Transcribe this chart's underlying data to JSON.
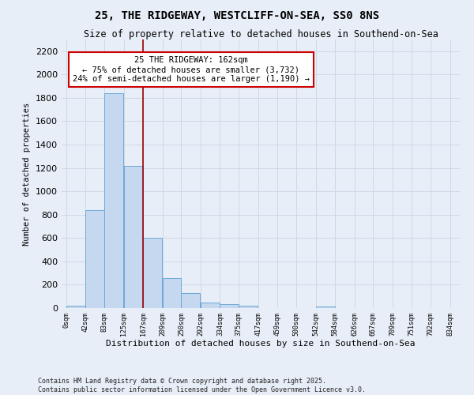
{
  "title": "25, THE RIDGEWAY, WESTCLIFF-ON-SEA, SS0 8NS",
  "subtitle": "Size of property relative to detached houses in Southend-on-Sea",
  "xlabel": "Distribution of detached houses by size in Southend-on-Sea",
  "ylabel": "Number of detached properties",
  "bar_values": [
    20,
    840,
    1840,
    1220,
    600,
    260,
    130,
    50,
    35,
    20,
    0,
    0,
    0,
    15,
    0,
    0,
    0,
    0,
    0,
    0
  ],
  "bin_labels": [
    "0sqm",
    "42sqm",
    "83sqm",
    "125sqm",
    "167sqm",
    "209sqm",
    "250sqm",
    "292sqm",
    "334sqm",
    "375sqm",
    "417sqm",
    "459sqm",
    "500sqm",
    "542sqm",
    "584sqm",
    "626sqm",
    "667sqm",
    "709sqm",
    "751sqm",
    "792sqm",
    "834sqm"
  ],
  "bin_starts": [
    0,
    42,
    83,
    125,
    167,
    209,
    250,
    292,
    334,
    375,
    417,
    459,
    500,
    542,
    584,
    626,
    667,
    709,
    751,
    792
  ],
  "bar_color": "#c5d8f0",
  "bar_edge_color": "#6aaad4",
  "vline_x": 167,
  "vline_color": "#990000",
  "annotation_text": "25 THE RIDGEWAY: 162sqm\n← 75% of detached houses are smaller (3,732)\n24% of semi-detached houses are larger (1,190) →",
  "annotation_box_color": "#ffffff",
  "annotation_box_edge": "#cc0000",
  "ylim": [
    0,
    2300
  ],
  "yticks": [
    0,
    200,
    400,
    600,
    800,
    1000,
    1200,
    1400,
    1600,
    1800,
    2000,
    2200
  ],
  "background_color": "#e8eef7",
  "grid_color": "#d0d8e8",
  "footer_line1": "Contains HM Land Registry data © Crown copyright and database right 2025.",
  "footer_line2": "Contains public sector information licensed under the Open Government Licence v3.0.",
  "bin_width": 41
}
